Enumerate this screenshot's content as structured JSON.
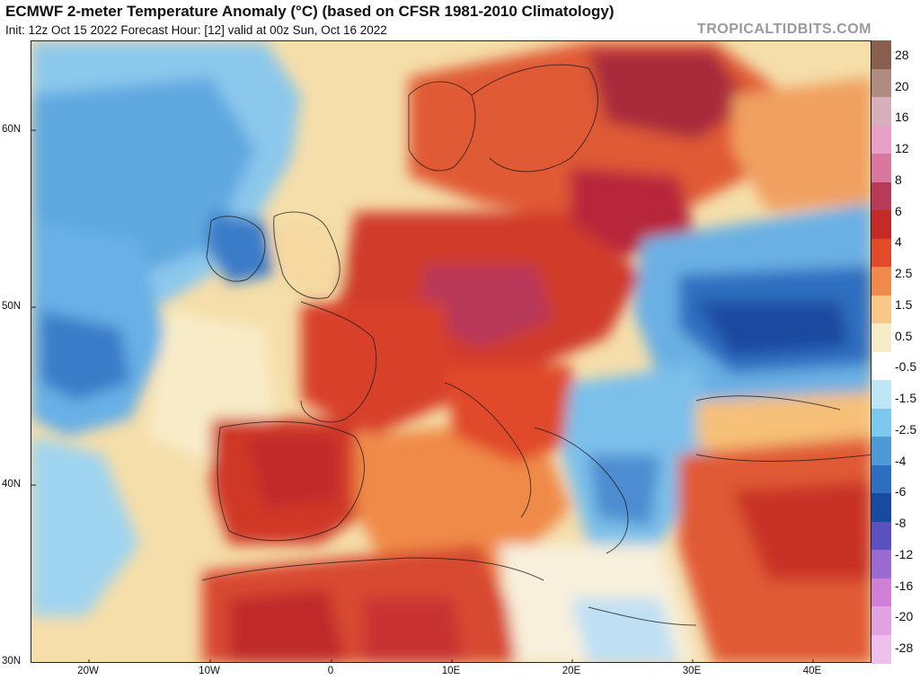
{
  "header": {
    "title": "ECMWF 2-meter Temperature Anomaly (°C) (based on CFSR 1981-2010 Climatology)",
    "subtitle": "Init: 12z Oct 15 2022   Forecast Hour: [12]   valid at 00z Sun, Oct 16 2022",
    "brand": "TROPICALTIDBITS.COM"
  },
  "map": {
    "latitude_labels": [
      "60N",
      "50N",
      "40N",
      "30N"
    ],
    "longitude_labels": [
      "20W",
      "10W",
      "0",
      "10E",
      "20E",
      "30E",
      "40E"
    ],
    "lat_range": [
      30,
      65
    ],
    "lon_range": [
      -25,
      45
    ]
  },
  "colorbar": {
    "labels": [
      "28",
      "20",
      "16",
      "12",
      "8",
      "6",
      "4",
      "2.5",
      "1.5",
      "0.5",
      "-0.5",
      "-1.5",
      "-2.5",
      "-4",
      "-6",
      "-8",
      "-12",
      "-16",
      "-20",
      "-28"
    ],
    "colors": [
      "#8a5e4e",
      "#b08a7e",
      "#d6aebc",
      "#e8a0c8",
      "#d9789e",
      "#b83a5a",
      "#c42a26",
      "#e24a2a",
      "#f08a4a",
      "#f8c888",
      "#f8ecc8",
      "#ffffff",
      "#bfe6f6",
      "#7cc8ee",
      "#4e9ad6",
      "#2e6ec0",
      "#1a4aa0",
      "#5a50c0",
      "#9a6ad0",
      "#d07ed6",
      "#e0a2e0",
      "#ecc0ea"
    ]
  }
}
